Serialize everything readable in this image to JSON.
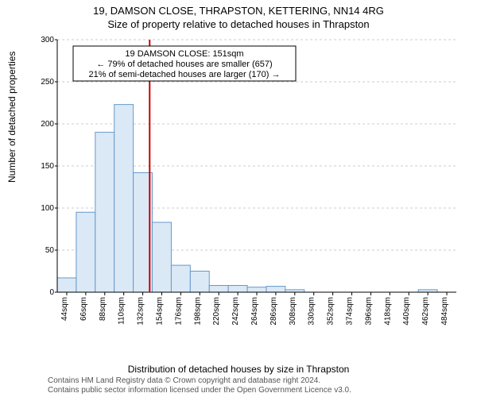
{
  "header": {
    "address": "19, DAMSON CLOSE, THRAPSTON, KETTERING, NN14 4RG",
    "subtitle": "Size of property relative to detached houses in Thrapston"
  },
  "ylabel": "Number of detached properties",
  "xlabel": "Distribution of detached houses by size in Thrapston",
  "annotation": {
    "line1": "19 DAMSON CLOSE: 151sqm",
    "line2": "← 79% of detached houses are smaller (657)",
    "line3": "21% of semi-detached houses are larger (170) →",
    "border_color": "#000000",
    "bg_color": "#ffffff",
    "fontsize": 11
  },
  "marker_line": {
    "x_value": 151,
    "color": "#cc0000",
    "width": 2
  },
  "chart": {
    "type": "histogram",
    "bar_fill": "#dbe9f6",
    "bar_stroke": "#6699cc",
    "grid_color": "#cccccc",
    "axis_color": "#000000",
    "background": "#ffffff",
    "label_fontsize": 10,
    "tick_fontsize": 10,
    "x_start": 44,
    "x_step": 22,
    "x_labels": [
      "44sqm",
      "66sqm",
      "88sqm",
      "110sqm",
      "132sqm",
      "154sqm",
      "176sqm",
      "198sqm",
      "220sqm",
      "242sqm",
      "264sqm",
      "286sqm",
      "308sqm",
      "330sqm",
      "352sqm",
      "374sqm",
      "396sqm",
      "418sqm",
      "440sqm",
      "462sqm",
      "484sqm"
    ],
    "values": [
      17,
      95,
      190,
      223,
      142,
      83,
      32,
      25,
      8,
      8,
      6,
      7,
      3,
      0,
      0,
      0,
      0,
      0,
      0,
      3,
      0
    ],
    "ylim": [
      0,
      300
    ],
    "y_ticks": [
      0,
      50,
      100,
      150,
      200,
      250,
      300
    ]
  },
  "footer": {
    "line1": "Contains HM Land Registry data © Crown copyright and database right 2024.",
    "line2": "Contains public sector information licensed under the Open Government Licence v3.0."
  }
}
